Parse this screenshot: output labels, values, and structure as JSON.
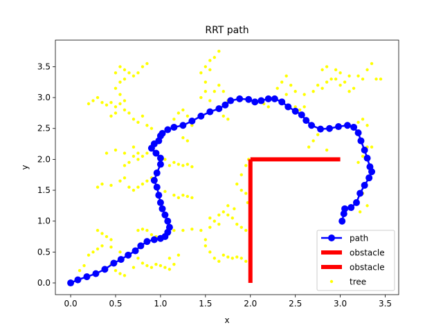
{
  "chart_data": {
    "type": "line",
    "title": "RRT path",
    "xlabel": "x",
    "ylabel": "y",
    "xlim": [
      -0.17,
      3.65
    ],
    "ylim": [
      -0.19,
      3.93
    ],
    "xticks": [
      0.0,
      0.5,
      1.0,
      1.5,
      2.0,
      2.5,
      3.0,
      3.5
    ],
    "xtick_labels": [
      "0.0",
      "0.5",
      "1.0",
      "1.5",
      "2.0",
      "2.5",
      "3.0",
      "3.5"
    ],
    "yticks": [
      0.0,
      0.5,
      1.0,
      1.5,
      2.0,
      2.5,
      3.0,
      3.5
    ],
    "ytick_labels": [
      "0.0",
      "0.5",
      "1.0",
      "1.5",
      "2.0",
      "2.5",
      "3.0",
      "3.5"
    ],
    "grid": false,
    "legend_position": "lower-right",
    "series": [
      {
        "name": "path",
        "kind": "line-marker",
        "color": "#0000ff",
        "points": [
          [
            0.0,
            0.0
          ],
          [
            0.08,
            0.05
          ],
          [
            0.18,
            0.1
          ],
          [
            0.28,
            0.15
          ],
          [
            0.38,
            0.22
          ],
          [
            0.48,
            0.32
          ],
          [
            0.56,
            0.38
          ],
          [
            0.64,
            0.45
          ],
          [
            0.72,
            0.52
          ],
          [
            0.78,
            0.6
          ],
          [
            0.85,
            0.67
          ],
          [
            0.93,
            0.7
          ],
          [
            1.0,
            0.72
          ],
          [
            1.05,
            0.75
          ],
          [
            1.08,
            0.82
          ],
          [
            1.1,
            0.9
          ],
          [
            1.08,
            1.0
          ],
          [
            1.05,
            1.1
          ],
          [
            1.02,
            1.2
          ],
          [
            1.0,
            1.3
          ],
          [
            0.98,
            1.42
          ],
          [
            0.96,
            1.55
          ],
          [
            0.93,
            1.66
          ],
          [
            0.96,
            1.78
          ],
          [
            1.0,
            1.92
          ],
          [
            1.0,
            2.02
          ],
          [
            0.95,
            2.1
          ],
          [
            0.9,
            2.18
          ],
          [
            0.93,
            2.25
          ],
          [
            0.98,
            2.3
          ],
          [
            1.0,
            2.38
          ],
          [
            1.02,
            2.42
          ],
          [
            1.08,
            2.48
          ],
          [
            1.15,
            2.52
          ],
          [
            1.25,
            2.55
          ],
          [
            1.35,
            2.62
          ],
          [
            1.45,
            2.7
          ],
          [
            1.55,
            2.77
          ],
          [
            1.65,
            2.82
          ],
          [
            1.72,
            2.88
          ],
          [
            1.78,
            2.95
          ],
          [
            1.88,
            2.98
          ],
          [
            1.98,
            2.97
          ],
          [
            2.05,
            2.93
          ],
          [
            2.12,
            2.95
          ],
          [
            2.2,
            2.98
          ],
          [
            2.27,
            2.98
          ],
          [
            2.35,
            2.93
          ],
          [
            2.42,
            2.85
          ],
          [
            2.5,
            2.78
          ],
          [
            2.57,
            2.72
          ],
          [
            2.62,
            2.63
          ],
          [
            2.68,
            2.55
          ],
          [
            2.78,
            2.49
          ],
          [
            2.88,
            2.5
          ],
          [
            2.98,
            2.53
          ],
          [
            3.08,
            2.55
          ],
          [
            3.15,
            2.52
          ],
          [
            3.2,
            2.43
          ],
          [
            3.23,
            2.3
          ],
          [
            3.27,
            2.15
          ],
          [
            3.3,
            2.02
          ],
          [
            3.33,
            1.88
          ],
          [
            3.35,
            1.8
          ],
          [
            3.32,
            1.7
          ],
          [
            3.27,
            1.58
          ],
          [
            3.22,
            1.45
          ],
          [
            3.18,
            1.3
          ],
          [
            3.12,
            1.22
          ],
          [
            3.05,
            1.2
          ],
          [
            3.04,
            1.12
          ],
          [
            3.02,
            1.0
          ]
        ]
      },
      {
        "name": "obstacle",
        "kind": "line",
        "color": "#ff0000",
        "points": [
          [
            2.0,
            0.0
          ],
          [
            2.0,
            2.0
          ]
        ]
      },
      {
        "name": "obstacle",
        "kind": "line",
        "color": "#ff0000",
        "points": [
          [
            2.0,
            2.0
          ],
          [
            3.0,
            2.0
          ]
        ]
      },
      {
        "name": "tree",
        "kind": "scatter",
        "color": "#ffff00",
        "points": [
          [
            0.1,
            0.2
          ],
          [
            0.15,
            0.28
          ],
          [
            0.2,
            0.45
          ],
          [
            0.25,
            0.5
          ],
          [
            0.3,
            0.55
          ],
          [
            0.35,
            0.6
          ],
          [
            0.3,
            0.85
          ],
          [
            0.35,
            0.8
          ],
          [
            0.4,
            0.75
          ],
          [
            0.45,
            0.7
          ],
          [
            0.45,
            0.58
          ],
          [
            0.55,
            0.5
          ],
          [
            0.5,
            0.2
          ],
          [
            0.55,
            0.15
          ],
          [
            0.6,
            0.12
          ],
          [
            0.45,
            0.3
          ],
          [
            0.7,
            0.25
          ],
          [
            0.75,
            0.4
          ],
          [
            0.8,
            0.32
          ],
          [
            0.85,
            0.28
          ],
          [
            0.9,
            0.25
          ],
          [
            0.95,
            0.3
          ],
          [
            1.0,
            0.28
          ],
          [
            1.05,
            0.25
          ],
          [
            1.1,
            0.22
          ],
          [
            1.15,
            0.3
          ],
          [
            1.1,
            0.4
          ],
          [
            1.2,
            0.45
          ],
          [
            0.75,
            0.85
          ],
          [
            0.8,
            0.87
          ],
          [
            0.85,
            0.85
          ],
          [
            0.9,
            0.78
          ],
          [
            0.95,
            0.75
          ],
          [
            1.15,
            0.85
          ],
          [
            1.25,
            0.85
          ],
          [
            1.35,
            0.87
          ],
          [
            1.45,
            0.85
          ],
          [
            1.55,
            0.9
          ],
          [
            1.6,
            1.0
          ],
          [
            1.65,
            1.1
          ],
          [
            1.7,
            1.15
          ],
          [
            1.65,
            0.95
          ],
          [
            1.55,
            1.05
          ],
          [
            1.5,
            0.7
          ],
          [
            1.5,
            0.6
          ],
          [
            1.55,
            0.5
          ],
          [
            1.6,
            0.4
          ],
          [
            1.65,
            0.35
          ],
          [
            1.7,
            0.45
          ],
          [
            1.75,
            0.42
          ],
          [
            1.8,
            0.4
          ],
          [
            1.85,
            0.42
          ],
          [
            1.9,
            0.4
          ],
          [
            1.95,
            0.35
          ],
          [
            1.75,
            1.1
          ],
          [
            1.8,
            1.05
          ],
          [
            1.85,
            0.95
          ],
          [
            1.9,
            0.9
          ],
          [
            1.95,
            0.85
          ],
          [
            1.97,
            1.3
          ],
          [
            1.95,
            1.45
          ],
          [
            1.9,
            1.5
          ],
          [
            1.85,
            1.6
          ],
          [
            1.9,
            1.75
          ],
          [
            1.95,
            1.9
          ],
          [
            1.98,
            2.0
          ],
          [
            1.75,
            1.25
          ],
          [
            1.82,
            1.2
          ],
          [
            0.3,
            1.55
          ],
          [
            0.35,
            1.6
          ],
          [
            0.45,
            1.58
          ],
          [
            0.55,
            1.65
          ],
          [
            0.6,
            1.7
          ],
          [
            0.65,
            1.55
          ],
          [
            0.7,
            1.5
          ],
          [
            0.75,
            1.55
          ],
          [
            0.8,
            1.6
          ],
          [
            0.85,
            1.65
          ],
          [
            0.9,
            1.7
          ],
          [
            1.05,
            1.48
          ],
          [
            1.15,
            1.42
          ],
          [
            1.2,
            1.38
          ],
          [
            1.25,
            1.42
          ],
          [
            1.3,
            1.4
          ],
          [
            1.35,
            1.38
          ],
          [
            0.4,
            2.1
          ],
          [
            0.5,
            2.15
          ],
          [
            0.6,
            2.1
          ],
          [
            0.7,
            2.05
          ],
          [
            0.75,
            2.0
          ],
          [
            0.8,
            2.05
          ],
          [
            0.85,
            2.1
          ],
          [
            0.7,
            2.2
          ],
          [
            0.65,
            1.95
          ],
          [
            0.6,
            1.9
          ],
          [
            0.75,
            2.1
          ],
          [
            1.05,
            2.0
          ],
          [
            1.1,
            1.9
          ],
          [
            1.15,
            1.95
          ],
          [
            1.2,
            1.92
          ],
          [
            1.25,
            1.9
          ],
          [
            1.3,
            1.92
          ],
          [
            1.35,
            1.88
          ],
          [
            0.2,
            2.9
          ],
          [
            0.25,
            2.95
          ],
          [
            0.3,
            3.0
          ],
          [
            0.35,
            2.92
          ],
          [
            0.4,
            2.88
          ],
          [
            0.45,
            2.92
          ],
          [
            0.5,
            2.85
          ],
          [
            0.55,
            2.9
          ],
          [
            0.6,
            2.95
          ],
          [
            0.55,
            3.05
          ],
          [
            0.5,
            3.15
          ],
          [
            0.55,
            3.25
          ],
          [
            0.6,
            3.3
          ],
          [
            0.5,
            3.4
          ],
          [
            0.55,
            3.5
          ],
          [
            0.6,
            3.45
          ],
          [
            0.65,
            3.4
          ],
          [
            0.7,
            3.35
          ],
          [
            0.75,
            3.4
          ],
          [
            0.8,
            3.5
          ],
          [
            0.85,
            3.55
          ],
          [
            0.45,
            2.7
          ],
          [
            0.5,
            2.75
          ],
          [
            0.6,
            2.8
          ],
          [
            0.65,
            2.75
          ],
          [
            0.7,
            2.65
          ],
          [
            0.75,
            2.6
          ],
          [
            0.8,
            2.7
          ],
          [
            0.85,
            2.55
          ],
          [
            0.9,
            2.5
          ],
          [
            1.15,
            2.65
          ],
          [
            1.2,
            2.75
          ],
          [
            1.25,
            2.8
          ],
          [
            1.3,
            2.7
          ],
          [
            1.35,
            2.55
          ],
          [
            1.25,
            2.35
          ],
          [
            1.3,
            2.3
          ],
          [
            1.5,
            3.25
          ],
          [
            1.45,
            3.4
          ],
          [
            1.5,
            3.5
          ],
          [
            1.55,
            3.6
          ],
          [
            1.6,
            3.65
          ],
          [
            1.65,
            3.75
          ],
          [
            1.55,
            3.45
          ],
          [
            1.5,
            3.1
          ],
          [
            1.45,
            3.0
          ],
          [
            1.55,
            2.95
          ],
          [
            1.6,
            3.1
          ],
          [
            1.65,
            3.2
          ],
          [
            1.7,
            3.1
          ],
          [
            1.75,
            2.95
          ],
          [
            1.7,
            2.7
          ],
          [
            1.75,
            2.65
          ],
          [
            2.15,
            2.9
          ],
          [
            2.2,
            2.85
          ],
          [
            2.3,
            3.15
          ],
          [
            2.35,
            3.25
          ],
          [
            2.4,
            3.35
          ],
          [
            2.45,
            3.2
          ],
          [
            2.4,
            3.05
          ],
          [
            2.5,
            2.85
          ],
          [
            2.55,
            2.8
          ],
          [
            2.6,
            2.85
          ],
          [
            2.5,
            3.1
          ],
          [
            2.6,
            3.05
          ],
          [
            2.7,
            3.1
          ],
          [
            2.75,
            3.2
          ],
          [
            2.8,
            3.15
          ],
          [
            2.85,
            3.25
          ],
          [
            2.9,
            3.3
          ],
          [
            2.95,
            3.3
          ],
          [
            3.0,
            3.2
          ],
          [
            3.05,
            3.25
          ],
          [
            3.1,
            3.35
          ],
          [
            2.8,
            3.45
          ],
          [
            2.85,
            3.5
          ],
          [
            2.95,
            3.45
          ],
          [
            3.0,
            3.4
          ],
          [
            3.2,
            3.35
          ],
          [
            3.25,
            3.3
          ],
          [
            3.3,
            3.45
          ],
          [
            3.35,
            3.55
          ],
          [
            3.4,
            3.3
          ],
          [
            3.45,
            3.3
          ],
          [
            3.1,
            3.1
          ],
          [
            3.15,
            3.15
          ],
          [
            2.75,
            2.4
          ],
          [
            2.7,
            2.3
          ],
          [
            2.65,
            2.2
          ],
          [
            2.85,
            2.15
          ],
          [
            3.2,
            2.6
          ],
          [
            3.25,
            2.65
          ],
          [
            3.3,
            2.55
          ],
          [
            3.3,
            2.2
          ],
          [
            3.35,
            2.2
          ],
          [
            3.25,
            2.05
          ],
          [
            3.2,
            1.95
          ],
          [
            3.25,
            1.45
          ],
          [
            3.3,
            1.25
          ],
          [
            3.22,
            1.15
          ],
          [
            2.45,
            2.0
          ]
        ]
      }
    ],
    "legend": [
      {
        "label": "path",
        "marker": "line-marker",
        "color": "#0000ff"
      },
      {
        "label": "obstacle",
        "marker": "thick-line",
        "color": "#ff0000"
      },
      {
        "label": "obstacle",
        "marker": "thick-line",
        "color": "#ff0000"
      },
      {
        "label": "tree",
        "marker": "dot",
        "color": "#ffff00"
      }
    ]
  }
}
